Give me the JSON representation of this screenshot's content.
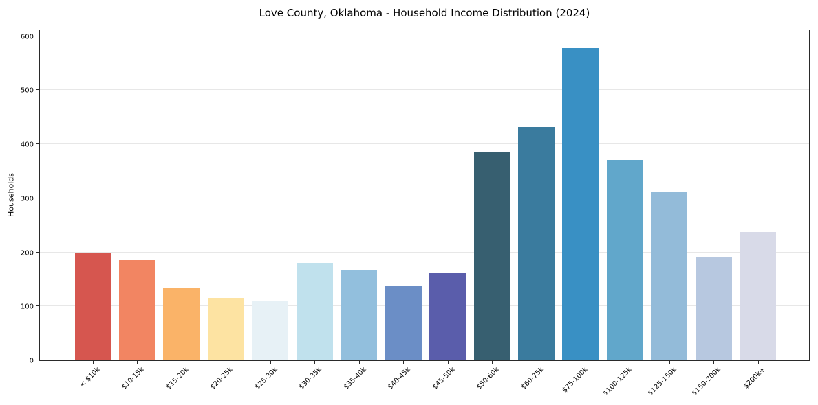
{
  "chart_data": {
    "type": "bar",
    "title": "Love County, Oklahoma - Household Income Distribution (2024)",
    "xlabel": "",
    "ylabel": "Households",
    "categories": [
      "< $10k",
      "$10-15k",
      "$15-20k",
      "$20-25k",
      "$25-30k",
      "$30-35k",
      "$35-40k",
      "$40-45k",
      "$45-50k",
      "$50-60k",
      "$60-75k",
      "$75-100k",
      "$100-125k",
      "$125-150k",
      "$150-200k",
      "$200k+"
    ],
    "values": [
      198,
      186,
      134,
      116,
      110,
      180,
      166,
      138,
      161,
      385,
      432,
      578,
      371,
      312,
      191,
      238
    ],
    "bar_colors": [
      "#d6564f",
      "#f28562",
      "#fab368",
      "#fde3a2",
      "#e7f1f6",
      "#c0e1ed",
      "#92bfdd",
      "#6b8ec6",
      "#5a5dab",
      "#375f70",
      "#3a7b9e",
      "#3990c4",
      "#61a7cb",
      "#93bbd9",
      "#b7c8e0",
      "#d8dae8"
    ],
    "yticks": [
      0,
      100,
      200,
      300,
      400,
      500,
      600
    ],
    "ylim": [
      0,
      611
    ],
    "grid": "horizontal-only",
    "legend": "none",
    "axis_color": "#2a2a2a",
    "grid_color": "#e7e7e7"
  }
}
